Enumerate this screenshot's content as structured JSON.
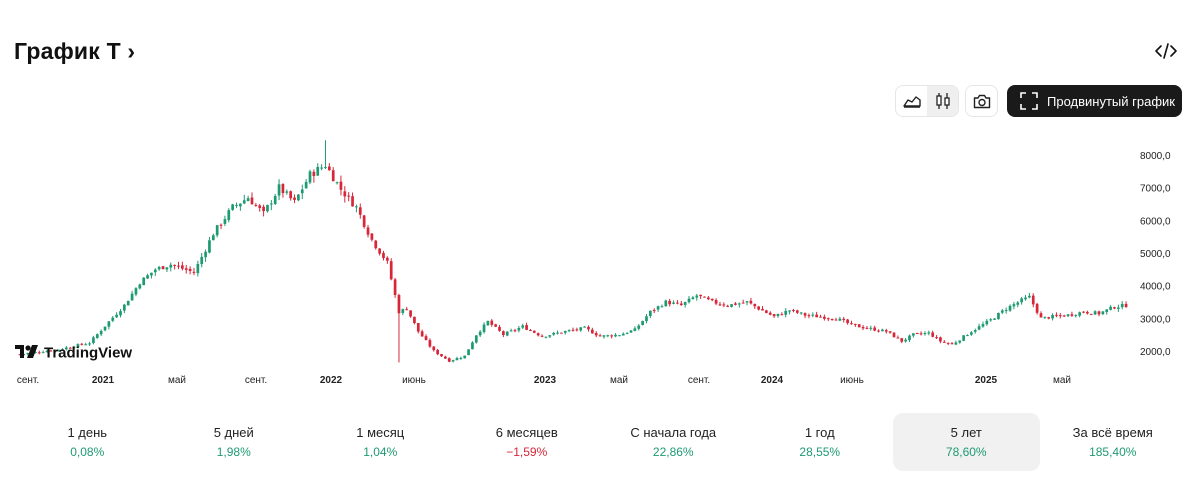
{
  "header": {
    "title": "График T",
    "title_chevron": "›",
    "embed_icon": "code-icon"
  },
  "toolbar": {
    "area_icon": "area-chart-icon",
    "candles_icon": "candlestick-icon",
    "snapshot_icon": "camera-icon",
    "advanced_label": "Продвинутый график",
    "advanced_icon": "fullscreen-icon"
  },
  "colors": {
    "up": "#1e9a73",
    "down": "#d72638",
    "axis_text": "#222222"
  },
  "chart": {
    "watermark": "TradingView",
    "x_labels": [
      "сент.",
      "2021",
      "май",
      "сент.",
      "2022",
      "июнь",
      "2023",
      "май",
      "сент.",
      "2024",
      "июнь",
      "2025",
      "май"
    ]
  },
  "chart_data": {
    "type": "candlestick",
    "y_ticks": [
      "8000,0",
      "7000,0",
      "6000,0",
      "5000,0",
      "4000,0",
      "3000,0",
      "2000,0"
    ],
    "ylim": [
      1500,
      8500
    ],
    "anchor_closes": [
      [
        0,
        1900
      ],
      [
        10,
        2050
      ],
      [
        18,
        2250
      ],
      [
        23,
        2900
      ],
      [
        27,
        3400
      ],
      [
        31,
        4100
      ],
      [
        35,
        4500
      ],
      [
        39,
        4650
      ],
      [
        45,
        4400
      ],
      [
        50,
        5600
      ],
      [
        55,
        6400
      ],
      [
        59,
        6700
      ],
      [
        63,
        6200
      ],
      [
        67,
        7000
      ],
      [
        71,
        6550
      ],
      [
        75,
        7400
      ],
      [
        79,
        7700
      ],
      [
        83,
        6950
      ],
      [
        87,
        6400
      ],
      [
        91,
        5400
      ],
      [
        95,
        4700
      ],
      [
        98,
        3200
      ],
      [
        100,
        3300
      ],
      [
        103,
        2600
      ],
      [
        107,
        2000
      ],
      [
        111,
        1700
      ],
      [
        115,
        1850
      ],
      [
        118,
        2500
      ],
      [
        121,
        2900
      ],
      [
        125,
        2500
      ],
      [
        130,
        2750
      ],
      [
        135,
        2450
      ],
      [
        141,
        2600
      ],
      [
        146,
        2700
      ],
      [
        150,
        2450
      ],
      [
        155,
        2500
      ],
      [
        159,
        2650
      ],
      [
        163,
        3200
      ],
      [
        167,
        3500
      ],
      [
        171,
        3400
      ],
      [
        175,
        3700
      ],
      [
        179,
        3500
      ],
      [
        183,
        3400
      ],
      [
        188,
        3500
      ],
      [
        191,
        3300
      ],
      [
        195,
        3050
      ],
      [
        199,
        3250
      ],
      [
        203,
        3100
      ],
      [
        207,
        3050
      ],
      [
        211,
        3000
      ],
      [
        215,
        2800
      ],
      [
        219,
        2700
      ],
      [
        224,
        2600
      ],
      [
        228,
        2300
      ],
      [
        231,
        2500
      ],
      [
        235,
        2550
      ],
      [
        238,
        2300
      ],
      [
        241,
        2200
      ],
      [
        246,
        2600
      ],
      [
        251,
        2950
      ],
      [
        255,
        3300
      ],
      [
        259,
        3550
      ],
      [
        261,
        3650
      ],
      [
        264,
        3000
      ],
      [
        267,
        3050
      ],
      [
        271,
        3100
      ],
      [
        275,
        3200
      ],
      [
        279,
        3150
      ],
      [
        283,
        3350
      ],
      [
        286,
        3400
      ]
    ],
    "range": [
      "сент. 2020",
      "2025"
    ]
  },
  "periods": [
    {
      "label": "1 день",
      "value": "0,08%",
      "dir": "up",
      "active": false
    },
    {
      "label": "5 дней",
      "value": "1,98%",
      "dir": "up",
      "active": false
    },
    {
      "label": "1 месяц",
      "value": "1,04%",
      "dir": "up",
      "active": false
    },
    {
      "label": "6 месяцев",
      "value": "−1,59%",
      "dir": "down",
      "active": false
    },
    {
      "label": "С начала года",
      "value": "22,86%",
      "dir": "up",
      "active": false
    },
    {
      "label": "1 год",
      "value": "28,55%",
      "dir": "up",
      "active": false
    },
    {
      "label": "5 лет",
      "value": "78,60%",
      "dir": "up",
      "active": true
    },
    {
      "label": "За всё время",
      "value": "185,40%",
      "dir": "up",
      "active": false
    }
  ]
}
